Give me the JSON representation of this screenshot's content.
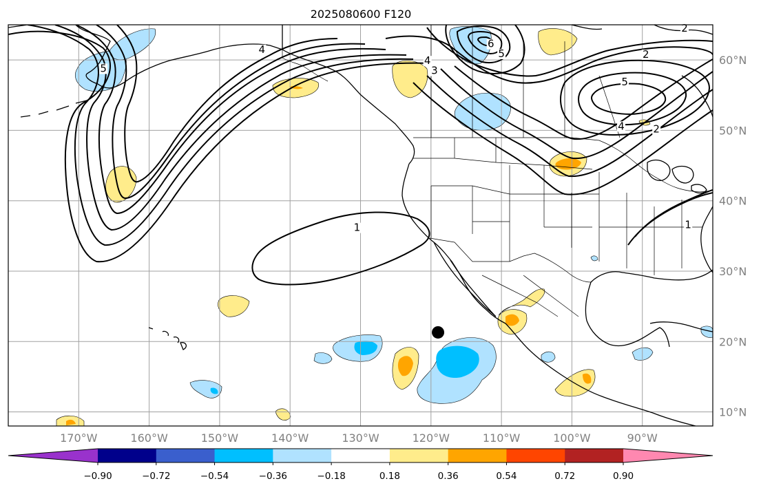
{
  "title": "2025080600 F120",
  "map": {
    "projection": "PlateCarree",
    "extent": {
      "lon_min": -180,
      "lon_max": -80,
      "lat_min": 8,
      "lat_max": 65
    },
    "gridlines": true,
    "lon_ticks": [
      {
        "value": -170,
        "label": "170°W"
      },
      {
        "value": -160,
        "label": "160°W"
      },
      {
        "value": -150,
        "label": "150°W"
      },
      {
        "value": -140,
        "label": "140°W"
      },
      {
        "value": -130,
        "label": "130°W"
      },
      {
        "value": -120,
        "label": "120°W"
      },
      {
        "value": -110,
        "label": "110°W"
      },
      {
        "value": -100,
        "label": "100°W"
      },
      {
        "value": -90,
        "label": "90°W"
      }
    ],
    "lat_ticks": [
      {
        "value": 60,
        "label": "60°N"
      },
      {
        "value": 50,
        "label": "50°N"
      },
      {
        "value": 40,
        "label": "40°N"
      },
      {
        "value": 30,
        "label": "30°N"
      },
      {
        "value": 20,
        "label": "20°N"
      },
      {
        "value": 10,
        "label": "10°N"
      }
    ],
    "marker": {
      "name": "storm-center-marker",
      "lon": -119,
      "lat": 21.3,
      "color": "#000000"
    },
    "contour_labels": [
      {
        "text": "5",
        "lon": -166.5,
        "lat": 58.5
      },
      {
        "text": "4",
        "lon": -144,
        "lat": 61.2
      },
      {
        "text": "1",
        "lon": -130.5,
        "lat": 35.9
      },
      {
        "text": "4",
        "lon": -120.5,
        "lat": 59.6
      },
      {
        "text": "3",
        "lon": -119.5,
        "lat": 58.2
      },
      {
        "text": "5",
        "lon": -110,
        "lat": 60.6
      },
      {
        "text": "6",
        "lon": -111.5,
        "lat": 62.0
      },
      {
        "text": "2",
        "lon": -84,
        "lat": 64.2
      },
      {
        "text": "2",
        "lon": -89.5,
        "lat": 60.5
      },
      {
        "text": "5",
        "lon": -92.5,
        "lat": 56.6
      },
      {
        "text": "4",
        "lon": -93,
        "lat": 50.3
      },
      {
        "text": "2",
        "lon": -88,
        "lat": 49.9
      },
      {
        "text": "1",
        "lon": -83.5,
        "lat": 36.3
      }
    ]
  },
  "colorbar": {
    "colors": [
      "#9932cc",
      "#00008b",
      "#3a5fcd",
      "#00bfff",
      "#b0e2ff",
      "#ffffff",
      "#ffec8b",
      "#ffa500",
      "#ff4500",
      "#b22222",
      "#ff88b0"
    ],
    "extend": "both",
    "tick_labels": [
      "−0.90",
      "−0.72",
      "−0.54",
      "−0.36",
      "−0.18",
      "0.18",
      "0.36",
      "0.54",
      "0.72",
      "0.90"
    ]
  }
}
